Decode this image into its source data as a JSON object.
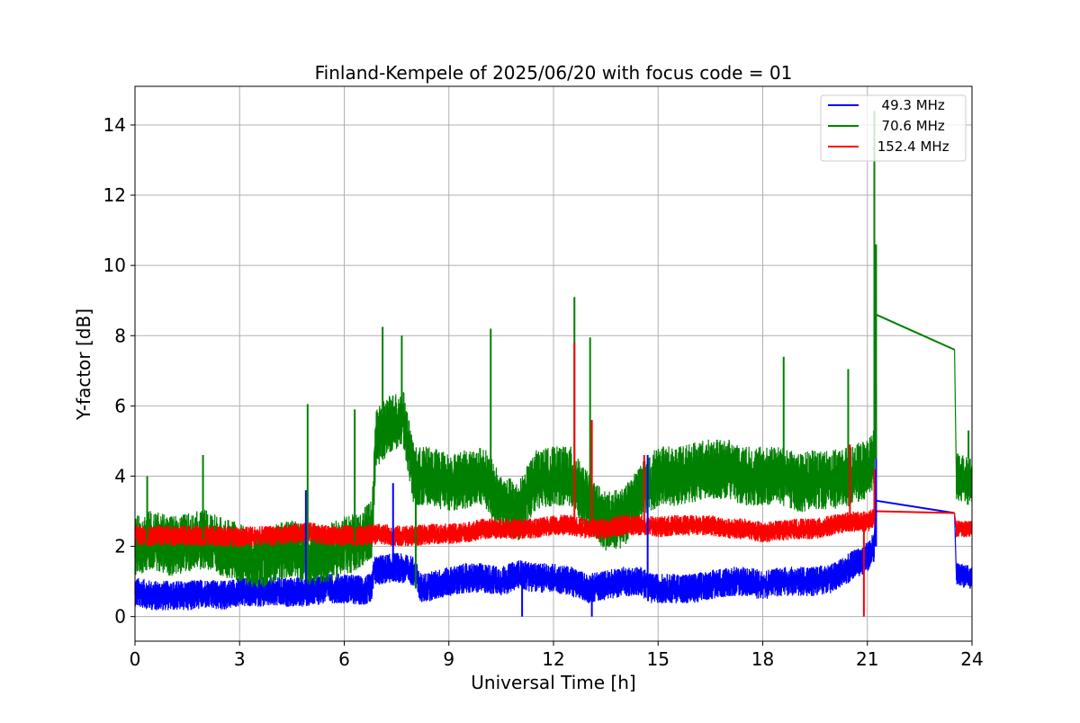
{
  "chart_data": {
    "type": "line",
    "title": "Finland-Kempele of 2025/06/20 with focus code = 01",
    "xlabel": "Universal Time [h]",
    "ylabel": "Y-factor [dB]",
    "xlim": [
      0,
      24
    ],
    "ylim": [
      -0.7,
      15.1
    ],
    "xticks": [
      0,
      3,
      6,
      9,
      12,
      15,
      18,
      21,
      24
    ],
    "yticks": [
      0,
      2,
      4,
      6,
      8,
      10,
      12,
      14
    ],
    "grid": true,
    "legend_position": "top-right",
    "series": [
      {
        "name": "  49.3 MHz",
        "color": "#0000ff",
        "noise": 0.5,
        "points": [
          [
            0.0,
            0.7
          ],
          [
            0.5,
            0.6
          ],
          [
            1.0,
            0.6
          ],
          [
            1.5,
            0.6
          ],
          [
            2.0,
            0.65
          ],
          [
            2.5,
            0.6
          ],
          [
            3.0,
            0.7
          ],
          [
            3.5,
            0.7
          ],
          [
            4.0,
            0.7
          ],
          [
            4.5,
            0.7
          ],
          [
            5.0,
            0.7
          ],
          [
            5.5,
            0.8
          ],
          [
            6.0,
            0.8
          ],
          [
            6.5,
            0.75
          ],
          [
            6.8,
            0.8
          ],
          [
            6.85,
            1.3
          ],
          [
            7.5,
            1.4
          ],
          [
            8.0,
            1.3
          ],
          [
            8.2,
            0.8
          ],
          [
            9.0,
            1.0
          ],
          [
            9.5,
            1.1
          ],
          [
            10.0,
            1.1
          ],
          [
            10.5,
            1.0
          ],
          [
            11.0,
            1.2
          ],
          [
            11.5,
            1.1
          ],
          [
            12.0,
            1.1
          ],
          [
            12.5,
            1.0
          ],
          [
            13.0,
            0.8
          ],
          [
            13.5,
            0.9
          ],
          [
            14.0,
            1.0
          ],
          [
            14.5,
            1.0
          ],
          [
            14.8,
            0.8
          ],
          [
            15.0,
            0.8
          ],
          [
            15.5,
            0.8
          ],
          [
            16.0,
            0.8
          ],
          [
            16.5,
            0.9
          ],
          [
            17.0,
            1.0
          ],
          [
            17.5,
            1.0
          ],
          [
            18.0,
            0.9
          ],
          [
            18.5,
            1.0
          ],
          [
            19.0,
            1.0
          ],
          [
            19.5,
            1.0
          ],
          [
            20.0,
            1.1
          ],
          [
            20.5,
            1.4
          ],
          [
            21.0,
            1.7
          ],
          [
            21.2,
            2.0
          ]
        ],
        "tail": [
          [
            21.25,
            3.3
          ],
          [
            23.5,
            2.95
          ]
        ],
        "after": [
          [
            23.55,
            1.2
          ],
          [
            24.0,
            1.1
          ]
        ]
      },
      {
        "name": "  70.6 MHz",
        "color": "#008000",
        "noise": 1.0,
        "points": [
          [
            0.0,
            2.0
          ],
          [
            0.5,
            2.2
          ],
          [
            1.0,
            2.0
          ],
          [
            1.5,
            2.1
          ],
          [
            2.0,
            2.2
          ],
          [
            2.5,
            2.0
          ],
          [
            3.0,
            1.8
          ],
          [
            3.5,
            1.6
          ],
          [
            4.0,
            1.8
          ],
          [
            4.5,
            1.9
          ],
          [
            5.0,
            1.7
          ],
          [
            5.5,
            1.8
          ],
          [
            6.0,
            2.0
          ],
          [
            6.5,
            2.2
          ],
          [
            6.8,
            2.5
          ],
          [
            6.9,
            5.0
          ],
          [
            7.3,
            5.5
          ],
          [
            7.7,
            5.6
          ],
          [
            8.0,
            4.0
          ],
          [
            8.5,
            4.0
          ],
          [
            9.0,
            3.8
          ],
          [
            9.5,
            3.9
          ],
          [
            10.0,
            4.0
          ],
          [
            10.5,
            3.2
          ],
          [
            11.0,
            3.0
          ],
          [
            11.5,
            3.9
          ],
          [
            12.0,
            4.0
          ],
          [
            12.5,
            4.0
          ],
          [
            12.8,
            3.5
          ],
          [
            13.2,
            3.0
          ],
          [
            13.5,
            2.7
          ],
          [
            14.0,
            2.8
          ],
          [
            14.5,
            3.5
          ],
          [
            15.0,
            4.0
          ],
          [
            15.5,
            4.0
          ],
          [
            16.0,
            4.1
          ],
          [
            16.5,
            4.2
          ],
          [
            17.0,
            4.2
          ],
          [
            17.5,
            4.0
          ],
          [
            18.0,
            4.0
          ],
          [
            18.5,
            4.0
          ],
          [
            19.0,
            3.8
          ],
          [
            19.5,
            3.9
          ],
          [
            20.0,
            3.9
          ],
          [
            20.5,
            4.0
          ],
          [
            21.0,
            4.2
          ],
          [
            21.2,
            4.5
          ]
        ],
        "tail": [
          [
            21.25,
            8.6
          ],
          [
            23.5,
            7.6
          ]
        ],
        "after": [
          [
            23.55,
            4.0
          ],
          [
            24.0,
            3.8
          ]
        ]
      },
      {
        "name": " 152.4 MHz",
        "color": "#ff0000",
        "noise": 0.35,
        "points": [
          [
            0.0,
            2.3
          ],
          [
            0.5,
            2.3
          ],
          [
            1.0,
            2.3
          ],
          [
            1.5,
            2.3
          ],
          [
            2.0,
            2.3
          ],
          [
            2.5,
            2.3
          ],
          [
            3.0,
            2.25
          ],
          [
            3.5,
            2.3
          ],
          [
            4.0,
            2.3
          ],
          [
            4.5,
            2.35
          ],
          [
            5.0,
            2.4
          ],
          [
            5.5,
            2.3
          ],
          [
            6.0,
            2.3
          ],
          [
            6.5,
            2.3
          ],
          [
            7.0,
            2.35
          ],
          [
            7.5,
            2.3
          ],
          [
            8.0,
            2.3
          ],
          [
            8.5,
            2.35
          ],
          [
            9.0,
            2.35
          ],
          [
            9.5,
            2.4
          ],
          [
            10.0,
            2.5
          ],
          [
            10.5,
            2.5
          ],
          [
            11.0,
            2.5
          ],
          [
            11.5,
            2.5
          ],
          [
            12.0,
            2.6
          ],
          [
            12.5,
            2.6
          ],
          [
            13.0,
            2.5
          ],
          [
            13.5,
            2.5
          ],
          [
            14.0,
            2.6
          ],
          [
            14.5,
            2.6
          ],
          [
            15.0,
            2.55
          ],
          [
            15.5,
            2.6
          ],
          [
            16.0,
            2.6
          ],
          [
            16.5,
            2.6
          ],
          [
            17.0,
            2.5
          ],
          [
            17.5,
            2.5
          ],
          [
            18.0,
            2.4
          ],
          [
            18.5,
            2.45
          ],
          [
            19.0,
            2.5
          ],
          [
            19.5,
            2.5
          ],
          [
            20.0,
            2.6
          ],
          [
            20.5,
            2.7
          ],
          [
            21.0,
            2.7
          ],
          [
            21.2,
            2.8
          ]
        ],
        "tail": [
          [
            21.25,
            3.0
          ],
          [
            23.5,
            2.95
          ]
        ],
        "after": [
          [
            23.55,
            2.5
          ],
          [
            24.0,
            2.5
          ]
        ]
      }
    ],
    "spikes": [
      {
        "series": 0,
        "x": 4.9,
        "y": 3.6
      },
      {
        "series": 0,
        "x": 7.4,
        "y": 3.8
      },
      {
        "series": 0,
        "x": 11.1,
        "y": 0.0
      },
      {
        "series": 0,
        "x": 14.7,
        "y": 4.6
      },
      {
        "series": 0,
        "x": 13.1,
        "y": 0.0
      },
      {
        "series": 0,
        "x": 21.25,
        "y": 6.6
      },
      {
        "series": 1,
        "x": 0.35,
        "y": 4.0
      },
      {
        "series": 1,
        "x": 1.95,
        "y": 4.6
      },
      {
        "series": 1,
        "x": 4.95,
        "y": 6.05
      },
      {
        "series": 1,
        "x": 6.3,
        "y": 5.9
      },
      {
        "series": 1,
        "x": 7.1,
        "y": 8.25
      },
      {
        "series": 1,
        "x": 7.65,
        "y": 8.0
      },
      {
        "series": 1,
        "x": 8.05,
        "y": 0.8
      },
      {
        "series": 1,
        "x": 10.2,
        "y": 8.2
      },
      {
        "series": 1,
        "x": 12.6,
        "y": 9.1
      },
      {
        "series": 1,
        "x": 13.05,
        "y": 7.95
      },
      {
        "series": 1,
        "x": 18.6,
        "y": 7.4
      },
      {
        "series": 1,
        "x": 20.45,
        "y": 7.05
      },
      {
        "series": 1,
        "x": 21.2,
        "y": 14.4
      },
      {
        "series": 1,
        "x": 21.25,
        "y": 10.6
      },
      {
        "series": 1,
        "x": 23.9,
        "y": 5.3
      },
      {
        "series": 2,
        "x": 12.6,
        "y": 7.8
      },
      {
        "series": 2,
        "x": 13.1,
        "y": 5.6
      },
      {
        "series": 2,
        "x": 14.6,
        "y": 4.6
      },
      {
        "series": 2,
        "x": 20.9,
        "y": 0.0
      },
      {
        "series": 2,
        "x": 20.5,
        "y": 4.9
      },
      {
        "series": 2,
        "x": 21.2,
        "y": 4.2
      }
    ]
  }
}
